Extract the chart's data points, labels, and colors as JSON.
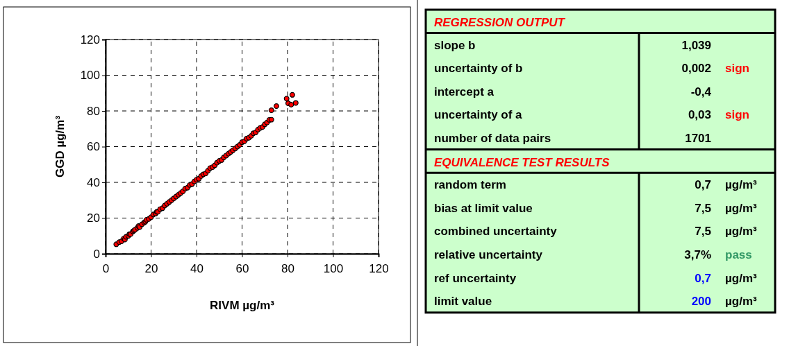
{
  "chart_data": [
    {
      "type": "scatter",
      "xlabel": "RIVM µg/m³",
      "ylabel": "GGD µg/m³",
      "xlim": [
        0,
        120
      ],
      "ylim": [
        0,
        120
      ],
      "xticks": [
        0,
        20,
        40,
        60,
        80,
        100,
        120
      ],
      "yticks": [
        0,
        20,
        40,
        60,
        80,
        100,
        120
      ],
      "grid": true,
      "marker": "circle",
      "series": [
        {
          "color": "#ff0000",
          "x": [
            4.7,
            6,
            7,
            8,
            8.5,
            9,
            10,
            10.5,
            11,
            12,
            12.5,
            13,
            14,
            14.5,
            15,
            16,
            17,
            17.5,
            18,
            19,
            20,
            21,
            22,
            22.5,
            23,
            24,
            25,
            26,
            27,
            28,
            29,
            30,
            31,
            32,
            33,
            34,
            35,
            36,
            37,
            38,
            39,
            40,
            41,
            42,
            43,
            44,
            45,
            46,
            47,
            48,
            49,
            50,
            51,
            52,
            53,
            54,
            55,
            56,
            57,
            58,
            59,
            60,
            61,
            62,
            63,
            64,
            65,
            66,
            67,
            68,
            69,
            70,
            71,
            72,
            72.9,
            72.9,
            75.1,
            79.6,
            80.3,
            81.6,
            82.1,
            83.6
          ],
          "values": [
            5.3,
            6.5,
            7,
            8.5,
            8,
            9.5,
            10,
            11,
            11,
            12.5,
            13,
            13.5,
            14.5,
            15.5,
            15,
            16.5,
            17.5,
            18,
            19,
            19.5,
            20.5,
            22,
            22.5,
            23.5,
            23.5,
            25,
            25.5,
            27,
            28,
            29,
            30,
            31,
            32,
            33,
            34,
            35,
            36.5,
            37,
            38.5,
            39,
            40.5,
            41.5,
            42,
            43.5,
            44.5,
            45,
            46.5,
            48,
            48.5,
            49.5,
            51,
            52,
            52.5,
            54,
            55,
            56,
            57,
            58,
            59,
            60,
            61,
            62.5,
            63,
            64.5,
            65,
            66,
            67.5,
            68,
            69.5,
            70.5,
            71,
            72.5,
            73.5,
            75,
            80.4,
            75.1,
            82.7,
            86.9,
            84.3,
            83.5,
            89,
            84.5
          ]
        }
      ]
    },
    {
      "type": "other",
      "annotations": [
        "REGRESSION OUTPUT",
        "slope b",
        "1,039",
        "uncertainty of b",
        "0,002",
        "sign",
        "intercept a",
        "-0,4",
        "uncertainty of a",
        "0,03",
        "sign",
        "number of data pairs",
        "1701",
        "EQUIVALENCE TEST RESULTS",
        "random term",
        "0,7",
        "µg/m³",
        "bias at limit value",
        "7,5",
        "µg/m³",
        "combined uncertainty",
        "7,5",
        "µg/m³",
        "relative uncertainty",
        "3,7%",
        "pass",
        "ref uncertainty",
        "0,7",
        "µg/m³",
        "limit value",
        "200",
        "µg/m³"
      ]
    }
  ]
}
